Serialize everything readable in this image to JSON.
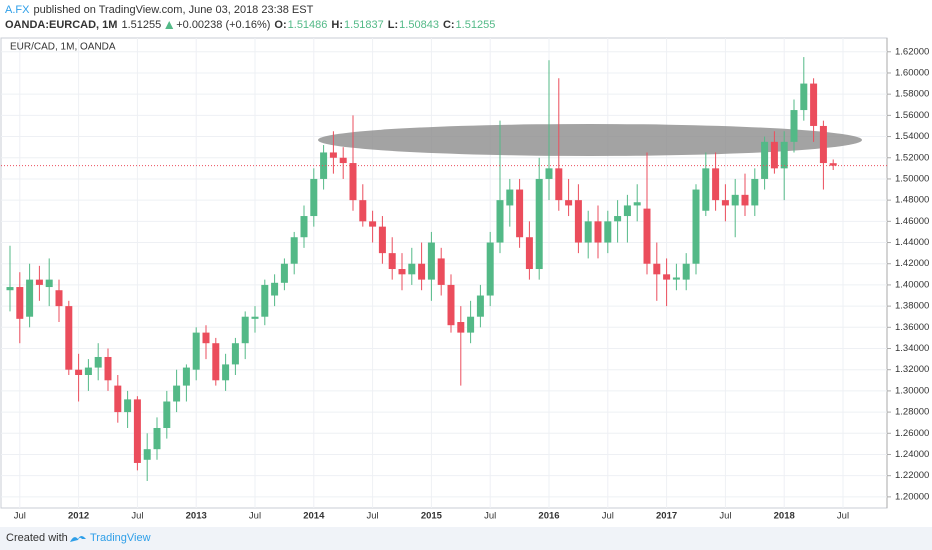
{
  "header": {
    "author": "A.FX",
    "published": "published on TradingView.com, June 03, 2018 23:38 EST",
    "symbol": "OANDA:EURCAD, 1M",
    "last": "1.51255",
    "change": "+0.00238 (+0.16%)",
    "ohlc": [
      {
        "label": "O:",
        "value": "1.51486"
      },
      {
        "label": "H:",
        "value": "1.51837"
      },
      {
        "label": "L:",
        "value": "1.50843"
      },
      {
        "label": "C:",
        "value": "1.51255"
      }
    ]
  },
  "footer": {
    "created": "Created with",
    "brand": "TradingView"
  },
  "chart_data": {
    "type": "candlestick",
    "title": "EUR/CAD, 1M, OANDA",
    "categories": [
      null,
      "Jul",
      null,
      null,
      null,
      null,
      null,
      "2012",
      null,
      null,
      null,
      null,
      null,
      "Jul",
      null,
      null,
      null,
      null,
      null,
      "2013",
      null,
      null,
      null,
      null,
      null,
      "Jul",
      null,
      null,
      null,
      null,
      null,
      "2014",
      null,
      null,
      null,
      null,
      null,
      "Jul",
      null,
      null,
      null,
      null,
      null,
      "2015",
      null,
      null,
      null,
      null,
      null,
      "Jul",
      null,
      null,
      null,
      null,
      null,
      "2016",
      null,
      null,
      null,
      null,
      null,
      "Jul",
      null,
      null,
      null,
      null,
      null,
      "2017",
      null,
      null,
      null,
      null,
      null,
      "Jul",
      null,
      null,
      null,
      null,
      null,
      "2018",
      null,
      null,
      null,
      null,
      null,
      "Jul"
    ],
    "open": [
      1.395,
      1.398,
      1.37,
      1.405,
      1.398,
      1.395,
      1.38,
      1.32,
      1.315,
      1.322,
      1.332,
      1.305,
      1.28,
      1.292,
      1.235,
      1.245,
      1.265,
      1.29,
      1.305,
      1.32,
      1.355,
      1.345,
      1.31,
      1.325,
      1.345,
      1.368,
      1.37,
      1.39,
      1.402,
      1.42,
      1.445,
      1.465,
      1.5,
      1.525,
      1.52,
      1.515,
      1.48,
      1.46,
      1.455,
      1.43,
      1.415,
      1.41,
      1.42,
      1.405,
      1.425,
      1.4,
      1.365,
      1.355,
      1.37,
      1.39,
      1.44,
      1.475,
      1.49,
      1.445,
      1.415,
      1.5,
      1.51,
      1.48,
      1.48,
      1.44,
      1.46,
      1.44,
      1.46,
      1.465,
      1.475,
      1.472,
      1.42,
      1.41,
      1.405,
      1.405,
      1.42,
      1.47,
      1.51,
      1.48,
      1.475,
      1.485,
      1.475,
      1.5,
      1.535,
      1.51,
      1.535,
      1.565,
      1.59,
      1.55,
      1.51486,
      null
    ],
    "high": [
      1.437,
      1.412,
      1.42,
      1.418,
      1.425,
      1.405,
      1.385,
      1.335,
      1.33,
      1.345,
      1.34,
      1.315,
      1.3,
      1.295,
      1.26,
      1.275,
      1.3,
      1.32,
      1.325,
      1.36,
      1.362,
      1.35,
      1.335,
      1.35,
      1.375,
      1.38,
      1.405,
      1.41,
      1.425,
      1.45,
      1.475,
      1.51,
      1.532,
      1.545,
      1.53,
      1.56,
      1.495,
      1.47,
      1.465,
      1.445,
      1.43,
      1.435,
      1.44,
      1.45,
      1.435,
      1.41,
      1.38,
      1.385,
      1.4,
      1.45,
      1.555,
      1.5,
      1.5,
      1.46,
      1.52,
      1.612,
      1.595,
      1.5,
      1.495,
      1.47,
      1.475,
      1.47,
      1.48,
      1.485,
      1.495,
      1.525,
      1.44,
      1.425,
      1.42,
      1.43,
      1.495,
      1.525,
      1.525,
      1.495,
      1.5,
      1.505,
      1.51,
      1.54,
      1.545,
      1.545,
      1.575,
      1.615,
      1.595,
      1.555,
      1.51837,
      null
    ],
    "low": [
      1.375,
      1.345,
      1.36,
      1.385,
      1.38,
      1.365,
      1.315,
      1.29,
      1.3,
      1.31,
      1.3,
      1.27,
      1.265,
      1.225,
      1.215,
      1.235,
      1.255,
      1.28,
      1.29,
      1.31,
      1.33,
      1.305,
      1.3,
      1.315,
      1.33,
      1.355,
      1.362,
      1.38,
      1.395,
      1.41,
      1.435,
      1.455,
      1.49,
      1.505,
      1.5,
      1.47,
      1.455,
      1.44,
      1.42,
      1.405,
      1.395,
      1.4,
      1.395,
      1.385,
      1.39,
      1.355,
      1.305,
      1.345,
      1.36,
      1.38,
      1.43,
      1.455,
      1.435,
      1.405,
      1.405,
      1.48,
      1.47,
      1.465,
      1.43,
      1.425,
      1.425,
      1.43,
      1.44,
      1.44,
      1.46,
      1.41,
      1.385,
      1.38,
      1.395,
      1.395,
      1.41,
      1.465,
      1.47,
      1.46,
      1.445,
      1.465,
      1.465,
      1.49,
      1.505,
      1.48,
      1.525,
      1.555,
      1.535,
      1.49,
      1.50843,
      null
    ],
    "close": [
      1.398,
      1.368,
      1.405,
      1.4,
      1.405,
      1.38,
      1.32,
      1.315,
      1.322,
      1.332,
      1.31,
      1.28,
      1.292,
      1.232,
      1.245,
      1.265,
      1.29,
      1.305,
      1.322,
      1.355,
      1.345,
      1.31,
      1.325,
      1.345,
      1.37,
      1.37,
      1.4,
      1.402,
      1.42,
      1.445,
      1.465,
      1.5,
      1.525,
      1.52,
      1.515,
      1.48,
      1.46,
      1.455,
      1.43,
      1.415,
      1.41,
      1.42,
      1.405,
      1.44,
      1.4,
      1.362,
      1.355,
      1.37,
      1.39,
      1.44,
      1.48,
      1.49,
      1.445,
      1.415,
      1.5,
      1.51,
      1.48,
      1.475,
      1.44,
      1.46,
      1.44,
      1.46,
      1.465,
      1.475,
      1.478,
      1.42,
      1.41,
      1.405,
      1.407,
      1.42,
      1.49,
      1.51,
      1.48,
      1.475,
      1.485,
      1.475,
      1.5,
      1.535,
      1.51,
      1.535,
      1.565,
      1.59,
      1.55,
      1.515,
      1.51255,
      null
    ],
    "up_color": "#53b987",
    "down_color": "#eb4d5c",
    "ylim": [
      1.1895,
      1.633
    ],
    "yticks": [
      {
        "value": 1.2,
        "label": "1.20000"
      },
      {
        "value": 1.22,
        "label": "1.22000"
      },
      {
        "value": 1.24,
        "label": "1.24000"
      },
      {
        "value": 1.26,
        "label": "1.26000"
      },
      {
        "value": 1.28,
        "label": "1.28000"
      },
      {
        "value": 1.3,
        "label": "1.30000"
      },
      {
        "value": 1.32,
        "label": "1.32000"
      },
      {
        "value": 1.34,
        "label": "1.34000"
      },
      {
        "value": 1.36,
        "label": "1.36000"
      },
      {
        "value": 1.38,
        "label": "1.38000"
      },
      {
        "value": 1.4,
        "label": "1.40000"
      },
      {
        "value": 1.42,
        "label": "1.42000"
      },
      {
        "value": 1.44,
        "label": "1.44000"
      },
      {
        "value": 1.46,
        "label": "1.46000"
      },
      {
        "value": 1.48,
        "label": "1.48000"
      },
      {
        "value": 1.5,
        "label": "1.50000"
      },
      {
        "value": 1.52,
        "label": "1.52000"
      },
      {
        "value": 1.54,
        "label": "1.54000"
      },
      {
        "value": 1.56,
        "label": "1.56000"
      },
      {
        "value": 1.58,
        "label": "1.58000"
      },
      {
        "value": 1.6,
        "label": "1.60000"
      },
      {
        "value": 1.62,
        "label": "1.62000"
      }
    ],
    "grid": true
  }
}
